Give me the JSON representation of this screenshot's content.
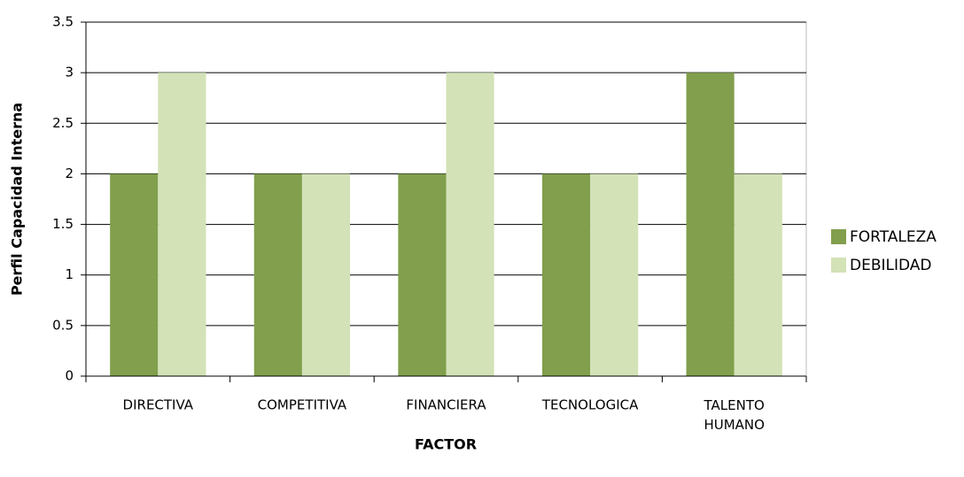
{
  "chart_data": {
    "type": "bar",
    "categories": [
      "DIRECTIVA",
      "COMPETITIVA",
      "FINANCIERA",
      "TECNOLOGICA",
      "TALENTO HUMANO"
    ],
    "series": [
      {
        "name": "FORTALEZA",
        "color": "#819f4c",
        "values": [
          2,
          2,
          2,
          2,
          3
        ]
      },
      {
        "name": "DEBILIDAD",
        "color": "#d3e2b7",
        "values": [
          3,
          2,
          3,
          2,
          2
        ]
      }
    ],
    "ylim": [
      0,
      3.5
    ],
    "yticks": [
      0,
      0.5,
      1,
      1.5,
      2,
      2.5,
      3,
      3.5
    ],
    "grid": true,
    "xlabel": "FACTOR",
    "ylabel": "Perfil Capacidad Interna",
    "legend": "right"
  }
}
